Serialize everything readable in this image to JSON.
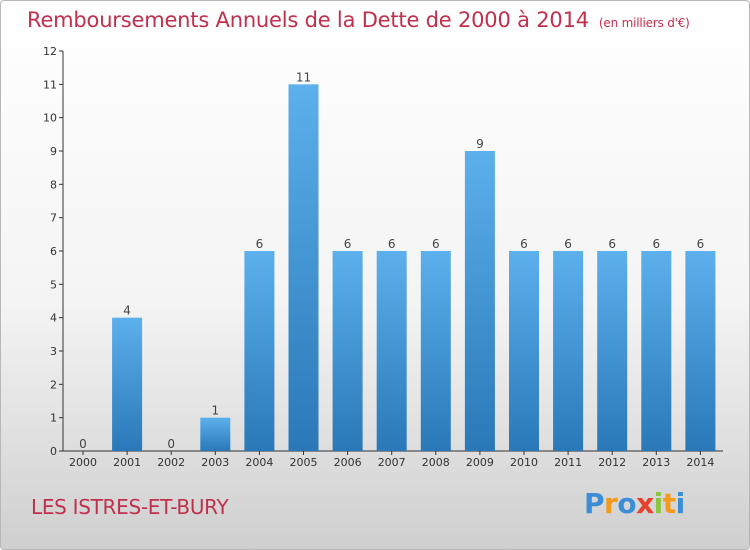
{
  "chart_data": {
    "type": "bar",
    "title": "Remboursements Annuels de la Dette de 2000 à 2014",
    "subtitle": "(en milliers d'€)",
    "xlabel": "",
    "ylabel": "",
    "ylim": [
      0,
      12
    ],
    "yticks": [
      0,
      1,
      2,
      3,
      4,
      5,
      6,
      7,
      8,
      9,
      10,
      11,
      12
    ],
    "categories": [
      "2000",
      "2001",
      "2002",
      "2003",
      "2004",
      "2005",
      "2006",
      "2007",
      "2008",
      "2009",
      "2010",
      "2011",
      "2012",
      "2013",
      "2014"
    ],
    "values": [
      0,
      4,
      0,
      1,
      6,
      11,
      6,
      6,
      6,
      9,
      6,
      6,
      6,
      6,
      6
    ],
    "grid": false
  },
  "footer": {
    "town": "LES ISTRES-ET-BURY",
    "logo_letters": [
      "P",
      "r",
      "o",
      "x",
      "i",
      "t",
      "i"
    ],
    "logo_colors": [
      "#3b8ed6",
      "#f39a1c",
      "#3b8ed6",
      "#e8402a",
      "#8cc63f",
      "#f39a1c",
      "#3b8ed6"
    ]
  },
  "colors": {
    "accent": "#c0304d",
    "bar_top": "#5cb0ec",
    "bar_bottom": "#2a78b8",
    "axis": "#333333"
  }
}
